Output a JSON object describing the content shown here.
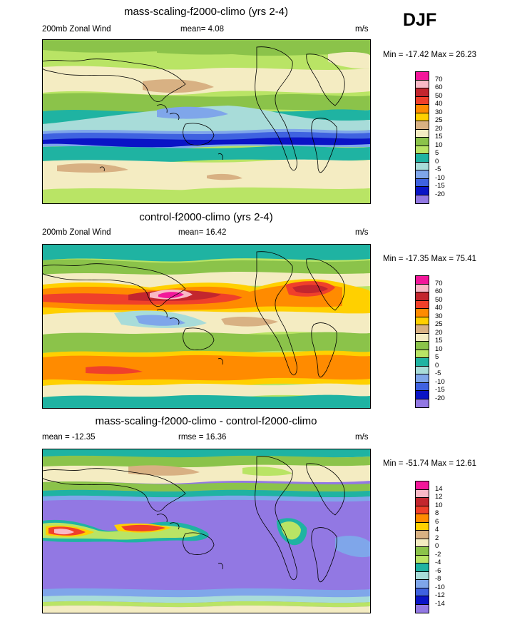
{
  "season": "DJF",
  "panels": [
    {
      "title": "mass-scaling-f2000-climo (yrs 2-4)",
      "left_label": "200mb Zonal Wind",
      "center_label": "mean=   4.08",
      "right_label": "m/s",
      "minmax": "Min = -17.42 Max =  26.23"
    },
    {
      "title": "control-f2000-climo (yrs 2-4)",
      "left_label": "200mb Zonal Wind",
      "center_label": "mean=  16.42",
      "right_label": "m/s",
      "minmax": "Min = -17.35 Max =  75.41"
    },
    {
      "title": "mass-scaling-f2000-climo - control-f2000-climo",
      "left_label": "mean = -12.35",
      "center_label": "rmse =  16.36",
      "right_label": "m/s",
      "minmax": "Min = -51.74 Max =  12.61"
    }
  ],
  "colorbar_wind": {
    "labels": [
      "70",
      "60",
      "50",
      "40",
      "30",
      "25",
      "20",
      "15",
      "10",
      "5",
      "0",
      "-5",
      "-10",
      "-15",
      "-20"
    ],
    "colors": [
      "#f2179a",
      "#f9b9c6",
      "#c3262e",
      "#f0402a",
      "#ff8b00",
      "#ffd000",
      "#d8b183",
      "#f4ecc2",
      "#8bc34a",
      "#b9e465",
      "#1fb3a2",
      "#a8dcd9",
      "#7fa6ea",
      "#3f62e0",
      "#0a14c6",
      "#9278e3"
    ]
  },
  "colorbar_diff": {
    "labels": [
      "14",
      "12",
      "10",
      "8",
      "6",
      "4",
      "2",
      "0",
      "-2",
      "-4",
      "-6",
      "-8",
      "-10",
      "-12",
      "-14"
    ],
    "colors": [
      "#f2179a",
      "#f9b9c6",
      "#c3262e",
      "#f0402a",
      "#ff8b00",
      "#ffd000",
      "#d8b183",
      "#f4ecc2",
      "#8bc34a",
      "#b9e465",
      "#1fb3a2",
      "#a8dcd9",
      "#7fa6ea",
      "#3f62e0",
      "#0a14c6",
      "#9278e3"
    ]
  }
}
